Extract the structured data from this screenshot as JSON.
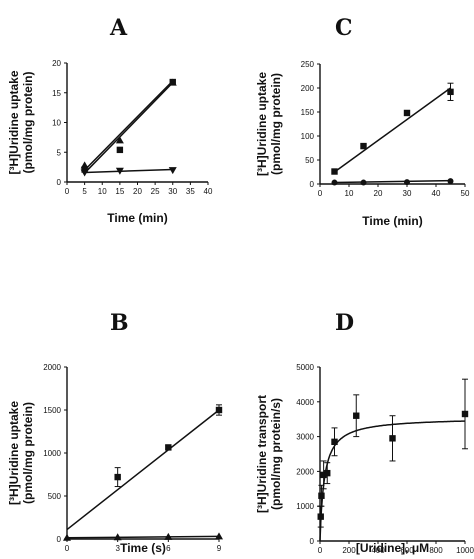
{
  "chart_data": [
    {
      "panel": "A",
      "type": "scatter",
      "ylabel_line1": "[³H]Uridine uptake",
      "ylabel_line2": "(pmol/mg protein)",
      "xlabel": "Time (min)",
      "xlim": [
        0,
        40
      ],
      "ylim": [
        0,
        20
      ],
      "xticks": [
        0,
        5,
        10,
        15,
        20,
        25,
        30,
        35,
        40
      ],
      "yticks": [
        0,
        5,
        10,
        15,
        20
      ],
      "series": [
        {
          "marker": "triangle-up",
          "points": [
            [
              5,
              2.8
            ],
            [
              15,
              7.0
            ],
            [
              30,
              16.7
            ]
          ],
          "fit": [
            [
              5,
              2.0
            ],
            [
              30,
              17.0
            ]
          ]
        },
        {
          "marker": "square",
          "points": [
            [
              5,
              2.1
            ],
            [
              15,
              5.4
            ],
            [
              30,
              16.8
            ]
          ],
          "fit": [
            [
              5,
              1.5
            ],
            [
              30,
              16.7
            ]
          ]
        },
        {
          "marker": "triangle-down",
          "points": [
            [
              5,
              1.6
            ],
            [
              15,
              1.9
            ],
            [
              30,
              2.0
            ]
          ],
          "fit": [
            [
              5,
              1.6
            ],
            [
              30,
              2.1
            ]
          ]
        }
      ]
    },
    {
      "panel": "B",
      "type": "scatter",
      "ylabel_line1": "[³H]Uridine uptake",
      "ylabel_line2": "(pmol/mg protein)",
      "xlabel": "Time (s)",
      "xlim": [
        0,
        9
      ],
      "ylim": [
        0,
        2000
      ],
      "xticks": [
        0,
        3,
        6,
        9
      ],
      "yticks": [
        0,
        500,
        1000,
        1500,
        2000
      ],
      "series": [
        {
          "marker": "square",
          "points": [
            [
              3,
              720,
              110
            ],
            [
              6,
              1065,
              20
            ],
            [
              9,
              1500,
              60
            ]
          ],
          "fit": [
            [
              0,
              110
            ],
            [
              9,
              1500
            ]
          ]
        },
        {
          "marker": "triangle-up",
          "points": [
            [
              0,
              15
            ],
            [
              3,
              20
            ],
            [
              6,
              25
            ],
            [
              9,
              30
            ]
          ],
          "fit": [
            [
              0,
              15
            ],
            [
              9,
              30
            ]
          ]
        }
      ]
    },
    {
      "panel": "C",
      "type": "scatter",
      "ylabel_line1": "[³H]Uridine uptake",
      "ylabel_line2": "(pmol/mg protein)",
      "xlabel": "Time (min)",
      "xlim": [
        0,
        50
      ],
      "ylim": [
        0,
        250
      ],
      "xticks": [
        0,
        10,
        20,
        30,
        40,
        50
      ],
      "yticks": [
        0,
        50,
        100,
        150,
        200,
        250
      ],
      "series": [
        {
          "marker": "square",
          "points": [
            [
              5,
              26,
              0
            ],
            [
              15,
              79,
              0
            ],
            [
              30,
              148,
              0
            ],
            [
              45,
              192,
              18
            ]
          ],
          "fit": [
            [
              5,
              25
            ],
            [
              45,
              200
            ]
          ]
        },
        {
          "marker": "circle",
          "points": [
            [
              5,
              3
            ],
            [
              15,
              3
            ],
            [
              30,
              4
            ],
            [
              45,
              6
            ]
          ],
          "fit": [
            [
              5,
              3
            ],
            [
              45,
              7
            ]
          ]
        }
      ]
    },
    {
      "panel": "D",
      "type": "scatter",
      "ylabel_line1": "[³H]Uridine transport",
      "ylabel_line2": "(pmol/mg protein/s)",
      "xlabel": "[Uridine], μM",
      "xlim": [
        0,
        1000
      ],
      "ylim": [
        0,
        5000
      ],
      "xticks": [
        0,
        200,
        400,
        600,
        800,
        1000
      ],
      "yticks": [
        0,
        1000,
        2000,
        3000,
        4000,
        5000
      ],
      "series": [
        {
          "marker": "square",
          "points": [
            [
              5,
              700,
              300
            ],
            [
              10,
              1300,
              300
            ],
            [
              25,
              1900,
              400
            ],
            [
              50,
              1950,
              300
            ],
            [
              100,
              2850,
              400
            ],
            [
              250,
              3600,
              600
            ],
            [
              500,
              2950,
              650
            ],
            [
              1000,
              3650,
              1000
            ]
          ],
          "fit_type": "michaelis-menten",
          "Vmax": 3550,
          "Km": 30
        }
      ]
    }
  ]
}
